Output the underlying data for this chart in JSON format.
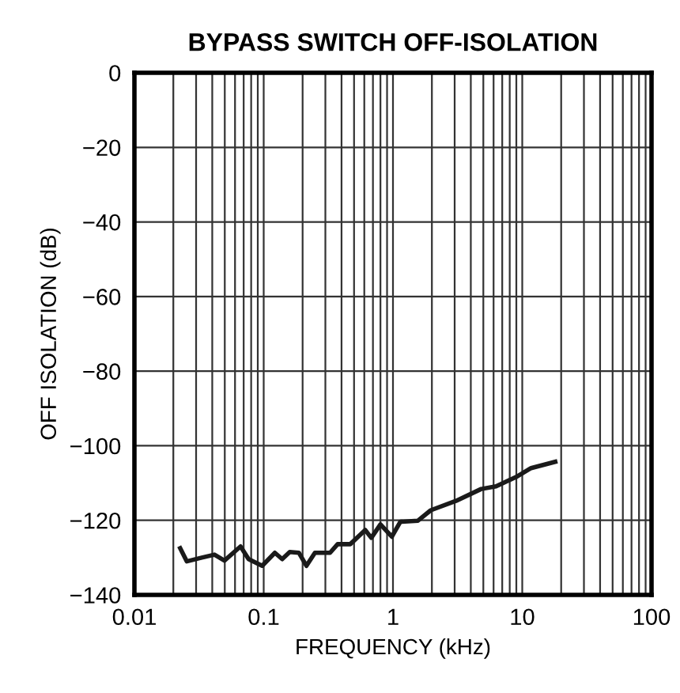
{
  "chart_data": {
    "type": "line",
    "title": "BYPASS SWITCH OFF-ISOLATION",
    "xlabel": "FREQUENCY (kHz)",
    "ylabel": "OFF ISOLATION (dB)",
    "log": "x",
    "grid": true,
    "xlim": [
      0.01,
      100
    ],
    "xticks": [
      0.01,
      0.1,
      1,
      10,
      100
    ],
    "ylim": [
      -140,
      0
    ],
    "yticks": [
      -140,
      -120,
      -100,
      -80,
      -60,
      -40,
      -20,
      0
    ],
    "series": [
      {
        "color": "#1a1a1a",
        "x": [
          0.0226,
          0.0254,
          0.0332,
          0.0416,
          0.0497,
          0.0662,
          0.0764,
          0.0973,
          0.122,
          0.139,
          0.159,
          0.187,
          0.214,
          0.249,
          0.326,
          0.373,
          0.467,
          0.61,
          0.68,
          0.8,
          0.98,
          1.14,
          1.56,
          1.96,
          3.07,
          4.81,
          6.27,
          8.94,
          11.7,
          18.0
        ],
        "values": [
          -127.5,
          -131,
          -130,
          -129.2,
          -130.8,
          -127,
          -130.4,
          -132.2,
          -128.7,
          -130.4,
          -128.5,
          -128.7,
          -132.2,
          -128.7,
          -128.7,
          -126.4,
          -126.4,
          -122.6,
          -124.7,
          -121.1,
          -124.4,
          -120.4,
          -120.1,
          -117.3,
          -114.8,
          -111.6,
          -110.9,
          -108.4,
          -106,
          -104.3
        ]
      }
    ]
  }
}
